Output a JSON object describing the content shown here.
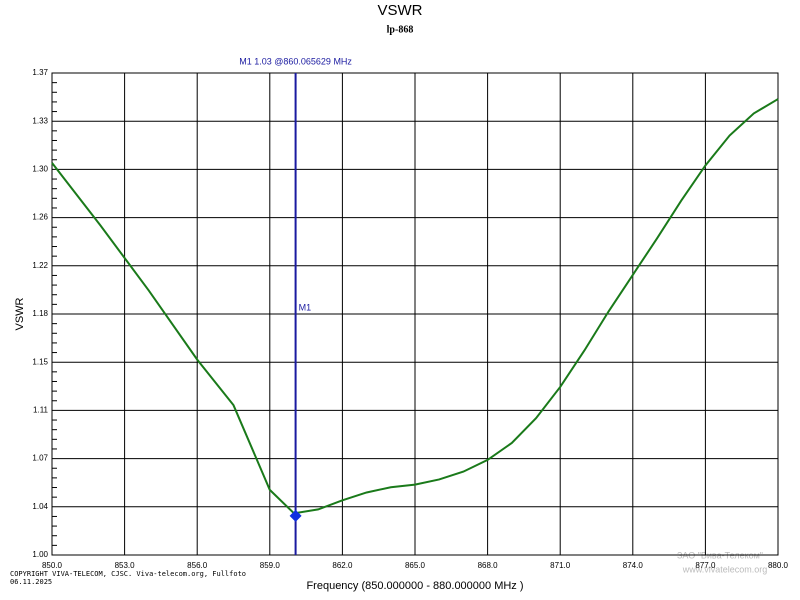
{
  "chart_data": {
    "type": "line",
    "title": "VSWR",
    "subtitle": "lp-868",
    "y_label": "VSWR",
    "x_label": "Frequency (850.000000 - 880.000000 MHz )",
    "copyright": "COPYRIGHT VIVA-TELECOM, CJSC. Viva-telecom.org, Fullfoto",
    "date": "06.11.2025",
    "watermark": [
      "ЗАО \"Вива-Телеком\"",
      "www.vivatelecom.org"
    ],
    "xlim": [
      850,
      880
    ],
    "ylim": [
      1.0,
      1.37
    ],
    "xticks": [
      {
        "value": 850,
        "label": "850.0"
      },
      {
        "value": 853,
        "label": "853.0"
      },
      {
        "value": 856,
        "label": "856.0"
      },
      {
        "value": 859,
        "label": "859.0"
      },
      {
        "value": 862,
        "label": "862.0"
      },
      {
        "value": 865,
        "label": "865.0"
      },
      {
        "value": 868,
        "label": "868.0"
      },
      {
        "value": 871,
        "label": "871.0"
      },
      {
        "value": 874,
        "label": "874.0"
      },
      {
        "value": 877,
        "label": "877.0"
      },
      {
        "value": 880,
        "label": "880.0"
      }
    ],
    "yticks": [
      {
        "value": 1.0,
        "label": "1.00"
      },
      {
        "value": 1.037,
        "label": "1.04"
      },
      {
        "value": 1.074,
        "label": "1.07"
      },
      {
        "value": 1.111,
        "label": "1.11"
      },
      {
        "value": 1.148,
        "label": "1.15"
      },
      {
        "value": 1.185,
        "label": "1.18"
      },
      {
        "value": 1.222,
        "label": "1.22"
      },
      {
        "value": 1.259,
        "label": "1.26"
      },
      {
        "value": 1.296,
        "label": "1.30"
      },
      {
        "value": 1.333,
        "label": "1.33"
      },
      {
        "value": 1.37,
        "label": "1.37"
      }
    ],
    "grid": true,
    "x": [
      850,
      852,
      854,
      856,
      857.5,
      859,
      860,
      861,
      862,
      863,
      864,
      865,
      866,
      867,
      868,
      869,
      870,
      871,
      872,
      873,
      874,
      875,
      876,
      877,
      878,
      879,
      880
    ],
    "series": [
      {
        "name": "VSWR",
        "color": "#1a7a1a",
        "values": [
          1.301,
          1.253,
          1.203,
          1.15,
          1.115,
          1.05,
          1.032,
          1.035,
          1.042,
          1.048,
          1.052,
          1.054,
          1.058,
          1.064,
          1.073,
          1.086,
          1.105,
          1.129,
          1.157,
          1.187,
          1.215,
          1.243,
          1.272,
          1.299,
          1.322,
          1.339,
          1.35
        ]
      }
    ],
    "marker": {
      "name": "M1",
      "label": "M1   1.03 @860.065629 MHz",
      "x": 860.065629,
      "y": 1.03,
      "color": "#1a1aa0"
    }
  }
}
